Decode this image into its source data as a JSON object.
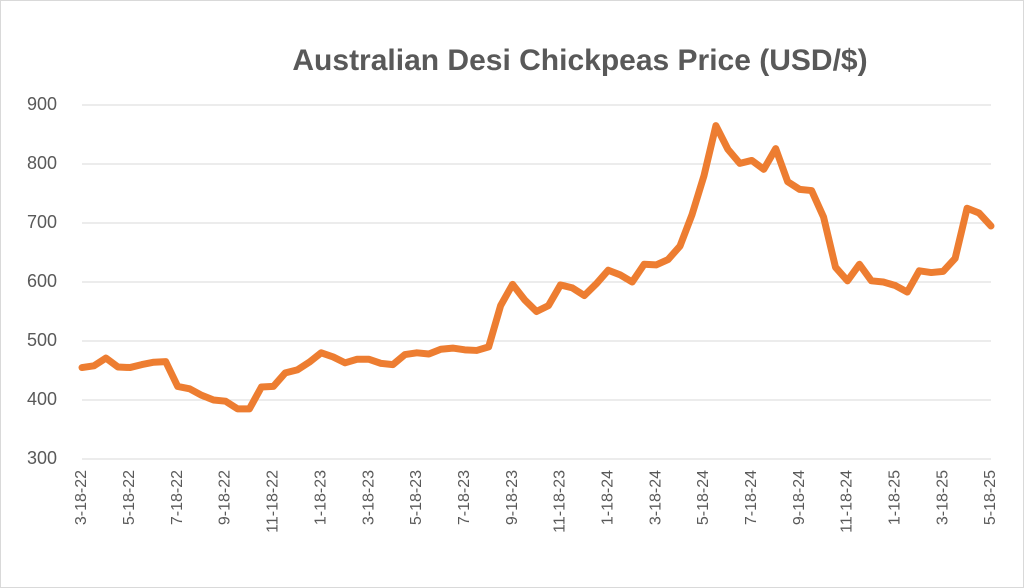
{
  "chart_data": {
    "type": "line",
    "title": "Australian Desi Chickpeas Price (USD/$)",
    "categories": [
      "3-18-22",
      null,
      null,
      null,
      "5-18-22",
      null,
      null,
      null,
      "7-18-22",
      null,
      null,
      null,
      "9-18-22",
      null,
      null,
      null,
      "11-18-22",
      null,
      null,
      null,
      "1-18-23",
      null,
      null,
      null,
      "3-18-23",
      null,
      null,
      null,
      "5-18-23",
      null,
      null,
      null,
      "7-18-23",
      null,
      null,
      null,
      "9-18-23",
      null,
      null,
      null,
      "11-18-23",
      null,
      null,
      null,
      "1-18-24",
      null,
      null,
      null,
      "3-18-24",
      null,
      null,
      null,
      "5-18-24",
      null,
      null,
      null,
      "7-18-24",
      null,
      null,
      null,
      "9-18-24",
      null,
      null,
      null,
      "11-18-24",
      null,
      null,
      null,
      "1-18-25",
      null,
      null,
      null,
      "3-18-25",
      null,
      null,
      null,
      "5-18-25"
    ],
    "values": [
      455,
      458,
      471,
      456,
      455,
      460,
      464,
      465,
      423,
      419,
      408,
      400,
      398,
      385,
      385,
      422,
      423,
      446,
      451,
      464,
      480,
      473,
      463,
      469,
      469,
      462,
      460,
      477,
      480,
      478,
      486,
      488,
      485,
      484,
      490,
      560,
      596,
      570,
      550,
      560,
      595,
      590,
      577,
      597,
      620,
      612,
      600,
      630,
      629,
      638,
      661,
      714,
      780,
      865,
      825,
      801,
      806,
      791,
      826,
      770,
      757,
      755,
      710,
      625,
      602,
      630,
      602,
      600,
      594,
      583,
      619,
      616,
      618,
      640,
      725,
      717,
      695
    ],
    "color": "#ed7d31",
    "ylim": [
      300,
      900
    ],
    "yticks": [
      300,
      400,
      500,
      600,
      700,
      800,
      900
    ],
    "grid": true
  }
}
